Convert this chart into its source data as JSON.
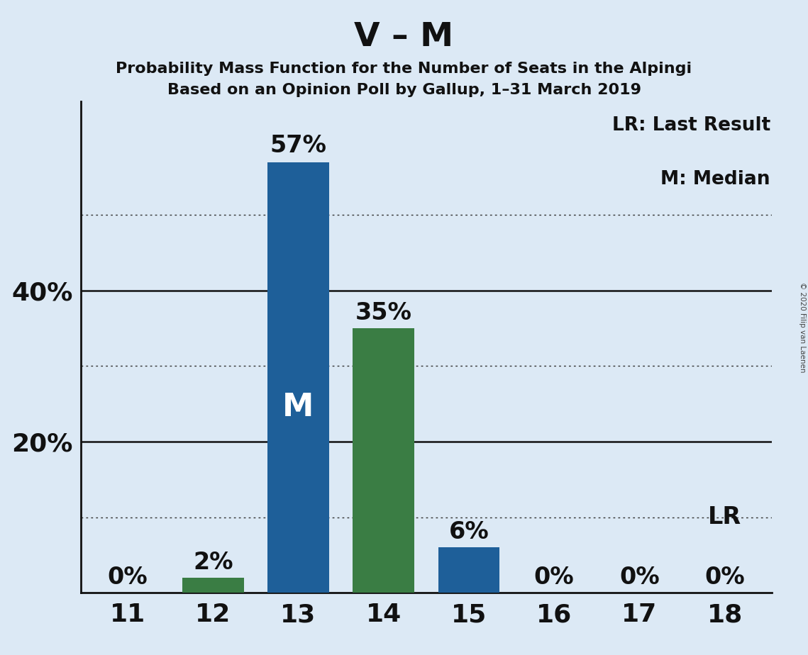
{
  "title": "V – M",
  "subtitle1": "Probability Mass Function for the Number of Seats in the Alpingi",
  "subtitle2": "Based on an Opinion Poll by Gallup, 1–31 March 2019",
  "copyright": "© 2020 Filip van Laenen",
  "legend1": "LR: Last Result",
  "legend2": "M: Median",
  "categories": [
    11,
    12,
    13,
    14,
    15,
    16,
    17,
    18
  ],
  "values": [
    0,
    2,
    57,
    35,
    6,
    0,
    0,
    0
  ],
  "bar_colors": [
    "#c8d8e8",
    "#3a7d44",
    "#1e5f99",
    "#3a7d44",
    "#1e5f99",
    "#c8d8e8",
    "#c8d8e8",
    "#c8d8e8"
  ],
  "median_bar_idx": 2,
  "lr_bar_idx": 7,
  "median_label": "M",
  "background_color": "#dce9f5",
  "dotted_lines": [
    10,
    30,
    50
  ],
  "solid_lines": [
    20,
    40
  ],
  "ylim": [
    0,
    65
  ],
  "title_fontsize": 34,
  "subtitle_fontsize": 16,
  "bar_label_fontsize": 22,
  "axis_tick_fontsize": 22,
  "legend_fontsize": 18,
  "M_fontsize": 32
}
